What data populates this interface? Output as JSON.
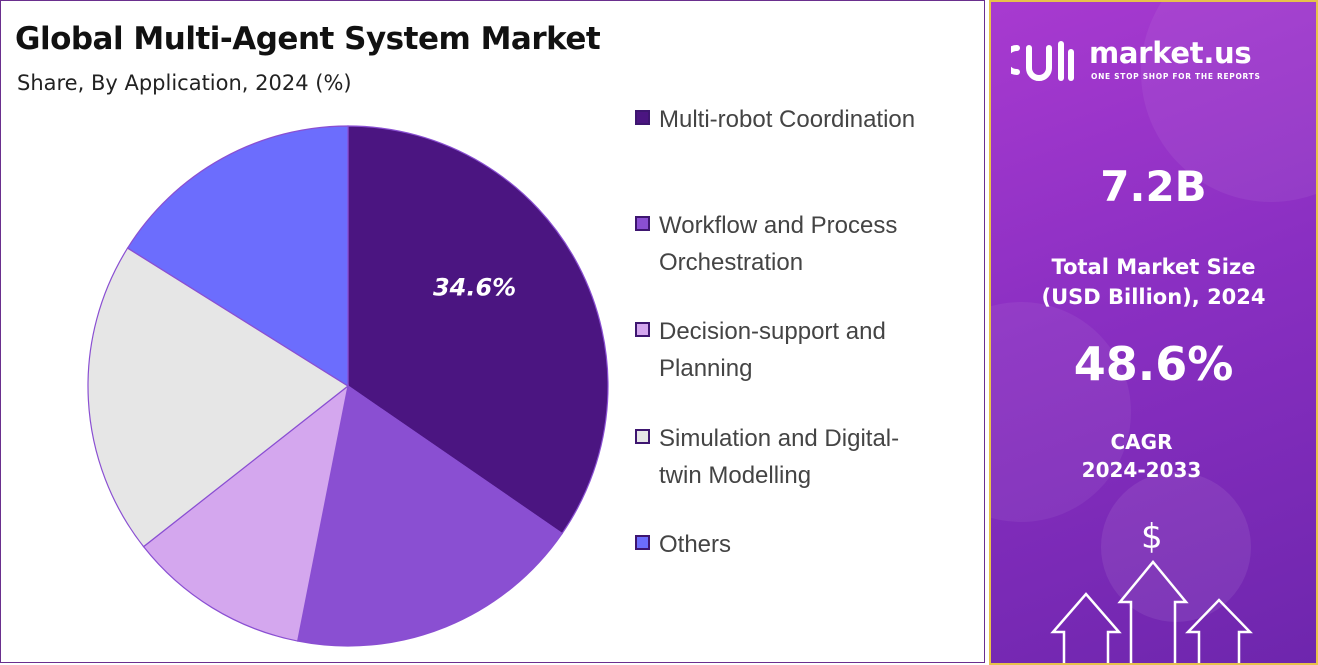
{
  "title": "Global Multi-Agent System Market",
  "subtitle": "Share, By Application, 2024 (%)",
  "chart_data": {
    "type": "pie",
    "title": "Global Multi-Agent System Market",
    "subtitle": "Share, By Application, 2024 (%)",
    "legend_position": "right",
    "slices": [
      {
        "name": "Multi-robot Coordination",
        "value": 34.6,
        "color": "#4b1581",
        "label": "34.6%"
      },
      {
        "name": "Workflow and Process Orchestration",
        "value": 18.5,
        "color": "#8a4fd2"
      },
      {
        "name": "Decision-support and Planning",
        "value": 11.3,
        "color": "#d4a7ee"
      },
      {
        "name": "Simulation and Digital-twin Modelling",
        "value": 19.5,
        "color": "#e6e6e6"
      },
      {
        "name": "Others",
        "value": 16.1,
        "color": "#6c6dfd"
      }
    ]
  },
  "legend": [
    {
      "line1": "Multi-robot Coordination",
      "line2": "",
      "color": "#4b1581"
    },
    {
      "line1": "Workflow and Process",
      "line2": "Orchestration",
      "color": "#8a4fd2"
    },
    {
      "line1": "Decision-support and",
      "line2": "Planning",
      "color": "#d4a7ee"
    },
    {
      "line1": "Simulation and Digital-",
      "line2": "twin Modelling",
      "color": "#e6e6e6"
    },
    {
      "line1": "Others",
      "line2": "",
      "color": "#6c6dfd"
    }
  ],
  "brand": {
    "name": "market.us",
    "tagline": "ONE STOP SHOP FOR THE REPORTS",
    "logo_icon": "market-us-logo-icon"
  },
  "stats": {
    "market_size_value": "7.2B",
    "market_size_label_line1": "Total Market Size",
    "market_size_label_line2": "(USD Billion), 2024",
    "cagr_value": "48.6%",
    "cagr_label_line1": "CAGR",
    "cagr_label_line2": "2024-2033"
  },
  "decor": {
    "dollar_symbol": "$",
    "icons": [
      "dollar-icon",
      "growth-arrows-icon"
    ]
  }
}
